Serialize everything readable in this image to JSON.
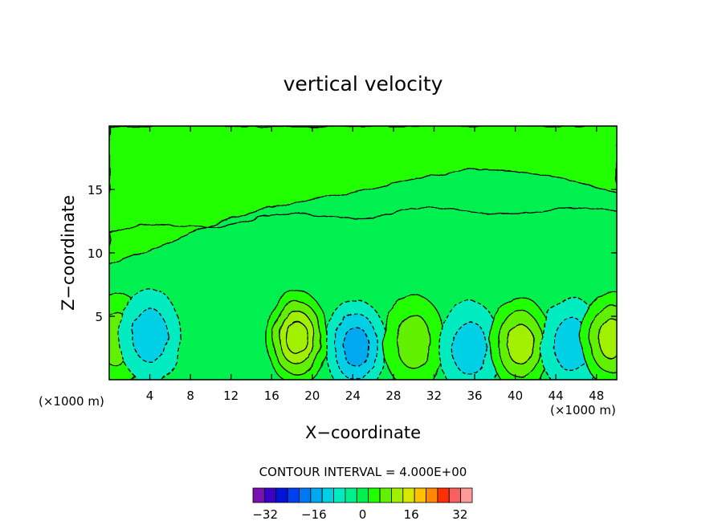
{
  "chart_data": {
    "type": "heatmap",
    "title": "vertical velocity",
    "xlabel": "X−coordinate",
    "ylabel": "Z−coordinate",
    "x_unit_left": "(×1000 m)",
    "x_unit_right": "(×1000 m)",
    "xlim": [
      0,
      50
    ],
    "ylim": [
      0,
      20
    ],
    "x_ticks": [
      4,
      8,
      12,
      16,
      20,
      24,
      28,
      32,
      36,
      40,
      44,
      48
    ],
    "y_ticks": [
      5,
      10,
      15
    ],
    "contour_interval_text": "CONTOUR INTERVAL = 4.000E+00",
    "colorbar": {
      "levels": [
        -36,
        -32,
        -28,
        -24,
        -20,
        -16,
        -12,
        -8,
        -4,
        0,
        4,
        8,
        12,
        16,
        20,
        24,
        28,
        32,
        36
      ],
      "tick_labels": [
        "−32",
        "−16",
        "0",
        "16",
        "32"
      ],
      "tick_values": [
        -32,
        -16,
        0,
        16,
        32
      ],
      "colors": [
        "#7a10b0",
        "#3a00c8",
        "#0014d8",
        "#0040f0",
        "#0078f4",
        "#00a8f0",
        "#00d0e6",
        "#00ecc0",
        "#00f08c",
        "#00f050",
        "#20ff00",
        "#60f000",
        "#a0f000",
        "#d8e800",
        "#ffc000",
        "#ff8800",
        "#ff3000",
        "#f86060",
        "#ff9a9a"
      ]
    },
    "features": [
      {
        "x": 0.7,
        "z": 3.2,
        "w": 3.0,
        "kind": "updraft"
      },
      {
        "x": 4.0,
        "z": 3.5,
        "w": -3.0,
        "kind": "downdraft"
      },
      {
        "x": 18.5,
        "z": 3.3,
        "w": 6.0,
        "kind": "updraft"
      },
      {
        "x": 24.3,
        "z": 2.6,
        "w": -4.5,
        "kind": "downdraft"
      },
      {
        "x": 30.0,
        "z": 3.0,
        "w": 3.0,
        "kind": "updraft"
      },
      {
        "x": 35.5,
        "z": 2.5,
        "w": -3.0,
        "kind": "downdraft"
      },
      {
        "x": 40.5,
        "z": 2.8,
        "w": 5.0,
        "kind": "updraft"
      },
      {
        "x": 45.5,
        "z": 2.8,
        "w": -3.0,
        "kind": "downdraft"
      },
      {
        "x": 49.5,
        "z": 3.2,
        "w": 5.0,
        "kind": "updraft"
      }
    ]
  }
}
